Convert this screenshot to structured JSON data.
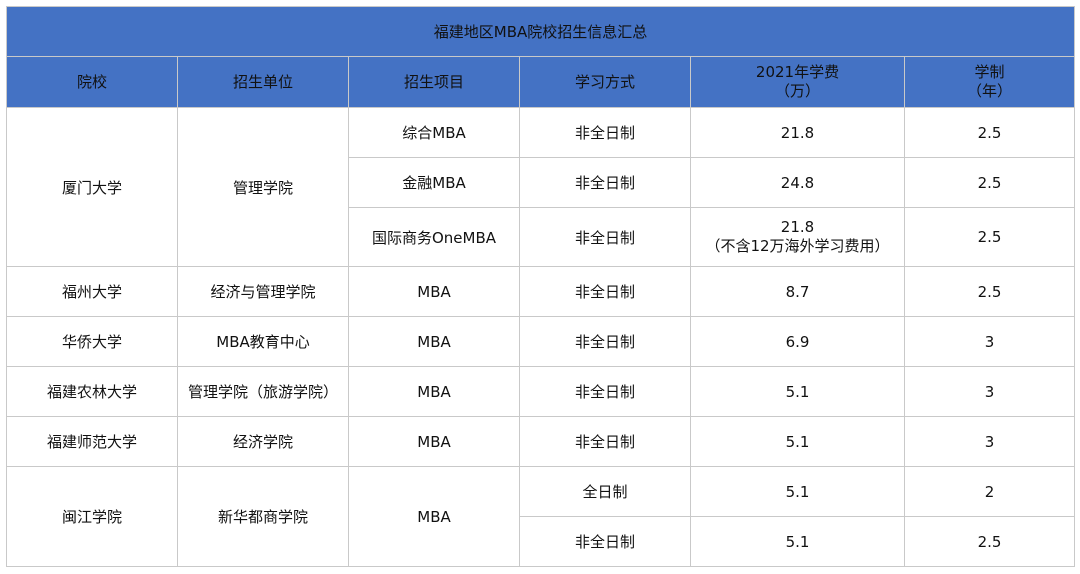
{
  "title": "福建地区MBA院校招生信息汇总",
  "headers": {
    "school": "院校",
    "unit": "招生单位",
    "program": "招生项目",
    "mode": "学习方式",
    "fee_line1": "2021年学费",
    "fee_line2": "（万）",
    "years_line1": "学制",
    "years_line2": "（年）"
  },
  "schools": [
    {
      "name": "厦门大学",
      "unit": "管理学院",
      "rows": [
        {
          "program": "综合MBA",
          "mode": "非全日制",
          "fee": "21.8",
          "fee_note": "",
          "years": "2.5"
        },
        {
          "program": "金融MBA",
          "mode": "非全日制",
          "fee": "24.8",
          "fee_note": "",
          "years": "2.5"
        },
        {
          "program": "国际商务OneMBA",
          "mode": "非全日制",
          "fee": "21.8",
          "fee_note": "（不含12万海外学习费用）",
          "years": "2.5"
        }
      ]
    },
    {
      "name": "福州大学",
      "unit": "经济与管理学院",
      "rows": [
        {
          "program": "MBA",
          "mode": "非全日制",
          "fee": "8.7",
          "fee_note": "",
          "years": "2.5"
        }
      ]
    },
    {
      "name": "华侨大学",
      "unit": "MBA教育中心",
      "rows": [
        {
          "program": "MBA",
          "mode": "非全日制",
          "fee": "6.9",
          "fee_note": "",
          "years": "3"
        }
      ]
    },
    {
      "name": "福建农林大学",
      "unit": "管理学院（旅游学院）",
      "rows": [
        {
          "program": "MBA",
          "mode": "非全日制",
          "fee": "5.1",
          "fee_note": "",
          "years": "3"
        }
      ]
    },
    {
      "name": "福建师范大学",
      "unit": "经济学院",
      "rows": [
        {
          "program": "MBA",
          "mode": "非全日制",
          "fee": "5.1",
          "fee_note": "",
          "years": "3"
        }
      ]
    },
    {
      "name": "闽江学院",
      "unit": "新华都商学院",
      "program": "MBA",
      "rows": [
        {
          "mode": "全日制",
          "fee": "5.1",
          "fee_note": "",
          "years": "2"
        },
        {
          "mode": "非全日制",
          "fee": "5.1",
          "fee_note": "",
          "years": "2.5"
        }
      ]
    }
  ]
}
